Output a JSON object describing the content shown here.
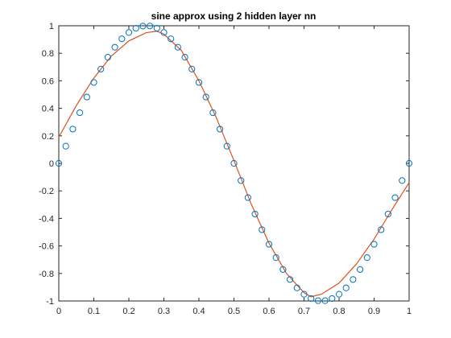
{
  "chart_data": {
    "type": "line",
    "title": "sine approx using 2 hidden layer nn",
    "xlabel": "",
    "ylabel": "",
    "xlim": [
      0,
      1
    ],
    "ylim": [
      -1,
      1
    ],
    "grid": false,
    "xticks": [
      0,
      0.1,
      0.2,
      0.3,
      0.4,
      0.5,
      0.6,
      0.7,
      0.8,
      0.9,
      1
    ],
    "xtick_labels": [
      "0",
      "0.1",
      "0.2",
      "0.3",
      "0.4",
      "0.5",
      "0.6",
      "0.7",
      "0.8",
      "0.9",
      "1"
    ],
    "yticks": [
      -1,
      -0.8,
      -0.6,
      -0.4,
      -0.2,
      0,
      0.2,
      0.4,
      0.6,
      0.8,
      1
    ],
    "ytick_labels": [
      "-1",
      "-0.8",
      "-0.6",
      "-0.4",
      "-0.2",
      "0",
      "0.2",
      "0.4",
      "0.6",
      "0.8",
      "1"
    ],
    "series": [
      {
        "type": "scatter",
        "marker": "circle-open",
        "color": "#0072BD",
        "x": [
          0,
          0.02,
          0.04,
          0.06,
          0.08,
          0.1,
          0.12,
          0.14,
          0.16,
          0.18,
          0.2,
          0.22,
          0.24,
          0.26,
          0.28,
          0.3,
          0.32,
          0.34,
          0.36,
          0.38,
          0.4,
          0.42,
          0.44,
          0.46,
          0.48,
          0.5,
          0.52,
          0.54,
          0.56,
          0.58,
          0.6,
          0.62,
          0.64,
          0.66,
          0.68,
          0.7,
          0.72,
          0.74,
          0.76,
          0.78,
          0.8,
          0.82,
          0.84,
          0.86,
          0.88,
          0.9,
          0.92,
          0.94,
          0.96,
          0.98,
          1
        ],
        "y": [
          0,
          0.125,
          0.249,
          0.368,
          0.482,
          0.588,
          0.685,
          0.771,
          0.844,
          0.905,
          0.951,
          0.982,
          0.998,
          0.998,
          0.982,
          0.951,
          0.905,
          0.844,
          0.771,
          0.685,
          0.588,
          0.482,
          0.368,
          0.249,
          0.125,
          0,
          -0.125,
          -0.249,
          -0.368,
          -0.482,
          -0.588,
          -0.685,
          -0.771,
          -0.844,
          -0.905,
          -0.951,
          -0.982,
          -0.998,
          -0.998,
          -0.982,
          -0.951,
          -0.905,
          -0.844,
          -0.771,
          -0.685,
          -0.588,
          -0.482,
          -0.368,
          -0.249,
          -0.125,
          0
        ]
      },
      {
        "type": "line",
        "color": "#D95319",
        "x": [
          0,
          0.05,
          0.1,
          0.15,
          0.2,
          0.25,
          0.28,
          0.3,
          0.35,
          0.4,
          0.45,
          0.5,
          0.55,
          0.6,
          0.65,
          0.7,
          0.72,
          0.75,
          0.8,
          0.85,
          0.9,
          0.95,
          1
        ],
        "y": [
          0.19,
          0.42,
          0.62,
          0.78,
          0.89,
          0.95,
          0.96,
          0.94,
          0.82,
          0.6,
          0.33,
          0.02,
          -0.3,
          -0.58,
          -0.8,
          -0.94,
          -0.97,
          -0.95,
          -0.87,
          -0.73,
          -0.55,
          -0.34,
          -0.14
        ]
      }
    ]
  }
}
